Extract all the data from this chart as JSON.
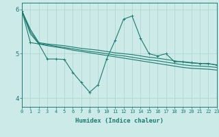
{
  "background_color": "#cceae7",
  "grid_color": "#aad4d0",
  "line_color": "#1a7a6e",
  "x_min": 0,
  "x_max": 23,
  "y_min": 3.8,
  "y_max": 6.15,
  "xlabel": "Humidex (Indice chaleur)",
  "yticks": [
    4,
    5,
    6
  ],
  "xticks": [
    0,
    1,
    2,
    3,
    4,
    5,
    6,
    7,
    8,
    9,
    10,
    11,
    12,
    13,
    14,
    15,
    16,
    17,
    18,
    19,
    20,
    21,
    22,
    23
  ],
  "series_jagged_x": [
    0,
    1,
    2,
    3,
    4,
    5,
    6,
    7,
    8,
    9,
    10,
    11,
    12,
    13,
    14,
    15,
    16,
    17,
    18,
    19,
    20,
    21,
    22,
    23
  ],
  "series_jagged_y": [
    5.97,
    5.25,
    5.22,
    4.88,
    4.88,
    4.87,
    4.58,
    4.35,
    4.13,
    4.3,
    4.88,
    5.3,
    5.78,
    5.85,
    5.35,
    5.0,
    4.95,
    5.0,
    4.82,
    4.82,
    4.8,
    4.78,
    4.78,
    4.74
  ],
  "series_upper_x": [
    0,
    1,
    2,
    3,
    4,
    5,
    6,
    7,
    8,
    9,
    10,
    11,
    12,
    13,
    14,
    15,
    16,
    17,
    18,
    19,
    20,
    21,
    22,
    23
  ],
  "series_upper_y": [
    5.97,
    5.55,
    5.25,
    5.22,
    5.2,
    5.18,
    5.15,
    5.12,
    5.1,
    5.08,
    5.05,
    5.02,
    5.0,
    4.98,
    4.95,
    4.92,
    4.9,
    4.87,
    4.84,
    4.81,
    4.79,
    4.78,
    4.77,
    4.75
  ],
  "series_lower_x": [
    0,
    1,
    2,
    3,
    4,
    5,
    6,
    7,
    8,
    9,
    10,
    11,
    12,
    13,
    14,
    15,
    16,
    17,
    18,
    19,
    20,
    21,
    22,
    23
  ],
  "series_lower_y": [
    5.97,
    5.45,
    5.22,
    5.18,
    5.15,
    5.12,
    5.08,
    5.05,
    5.02,
    4.99,
    4.96,
    4.93,
    4.9,
    4.87,
    4.84,
    4.81,
    4.78,
    4.75,
    4.72,
    4.69,
    4.67,
    4.66,
    4.65,
    4.63
  ],
  "series_mid_x": [
    0,
    1,
    2,
    3,
    4,
    5,
    6,
    7,
    8,
    9,
    10,
    11,
    12,
    13,
    14,
    15,
    16,
    17,
    18,
    19,
    20,
    21,
    22,
    23
  ],
  "series_mid_y": [
    5.97,
    5.5,
    5.23,
    5.2,
    5.17,
    5.14,
    5.11,
    5.08,
    5.05,
    5.03,
    5.0,
    4.97,
    4.95,
    4.92,
    4.89,
    4.86,
    4.84,
    4.81,
    4.78,
    4.75,
    4.73,
    4.72,
    4.71,
    4.69
  ]
}
